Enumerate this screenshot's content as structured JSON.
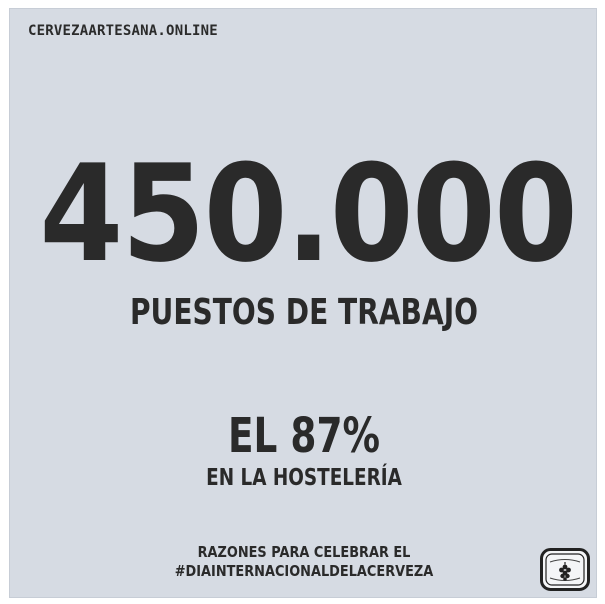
{
  "brand": {
    "text": "CERVEZAARTESANA.ONLINE"
  },
  "headline": {
    "number": "450.000",
    "label": "PUESTOS DE TRABAJO"
  },
  "stat": {
    "value": "EL 87%",
    "label": "EN LA HOSTELERÍA"
  },
  "footer": {
    "line1": "RAZONES PARA CELEBRAR EL",
    "line2": "#DIAINTERNACIONALDELACERVEZA"
  },
  "colors": {
    "background": "#d6dbe3",
    "text": "#2a2a2a"
  },
  "logo": {
    "icon": "beer-hop-logo-icon"
  }
}
